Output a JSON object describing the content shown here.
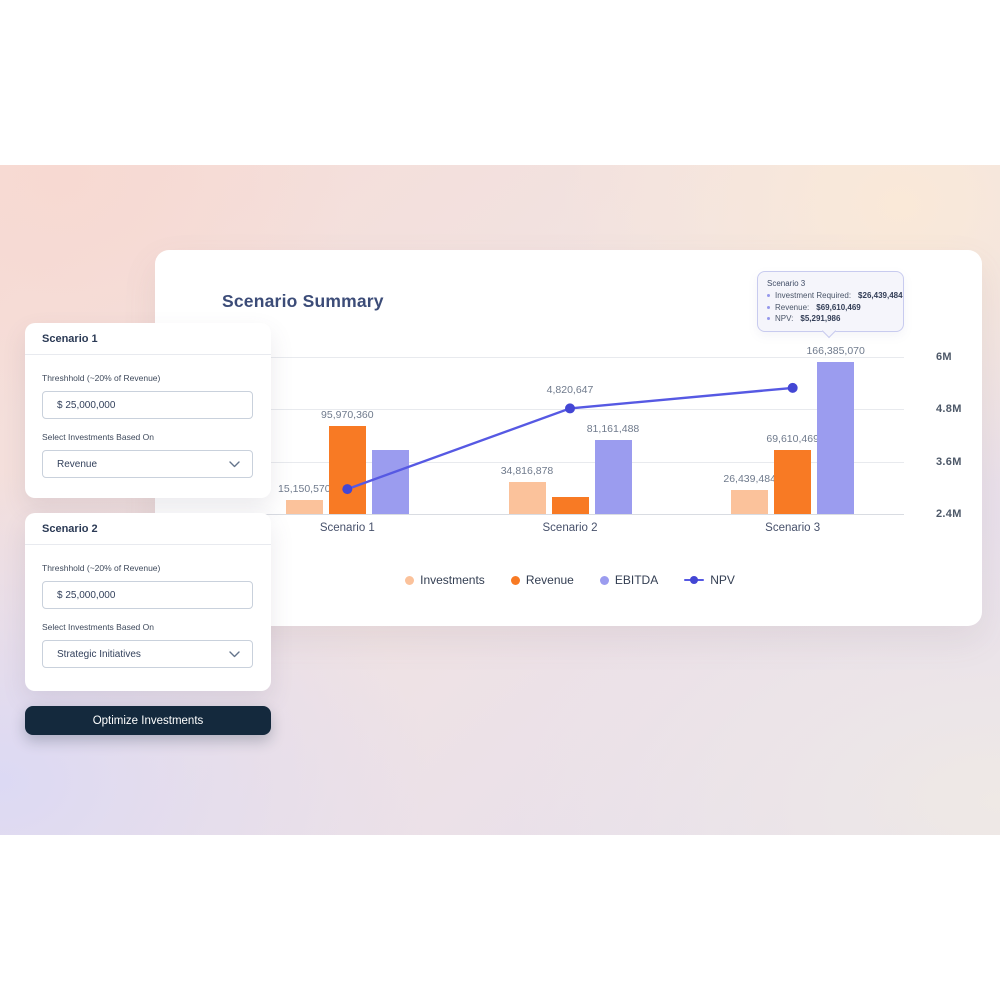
{
  "background": {
    "band_colors": {
      "pink": "#f7d9d2",
      "peach": "#fae9d8",
      "lavender": "#dcd9f4"
    }
  },
  "panel": {
    "scenario_forms": [
      {
        "title": "Scenario 1",
        "threshold_label": "Threshhold (~20% of Revenue)",
        "threshold_value": "$ 25,000,000",
        "select_label": "Select Investments Based On",
        "select_value": "Revenue"
      },
      {
        "title": "Scenario 2",
        "threshold_label": "Threshhold (~20% of Revenue)",
        "threshold_value": "$ 25,000,000",
        "select_label": "Select Investments Based On",
        "select_value": "Strategic Initiatives"
      }
    ],
    "optimize_button_label": "Optimize Investments"
  },
  "chart_card": {
    "title": "Scenario Summary",
    "tooltip": {
      "title": "Scenario 3",
      "items": [
        {
          "label": "Investment Required:",
          "value": "$26,439,484"
        },
        {
          "label": "Revenue:",
          "value": "$69,610,469"
        },
        {
          "label": "NPV:",
          "value": "$5,291,986"
        }
      ]
    }
  },
  "chart_data": {
    "type": "bar",
    "categories": [
      "Scenario 1",
      "Scenario 2",
      "Scenario 3"
    ],
    "series": [
      {
        "name": "Investments",
        "color": "#fbc29b",
        "values": [
          15150570,
          34816878,
          26439484
        ],
        "labels": [
          "15,150,570",
          "34,816,878",
          "26,439,484"
        ]
      },
      {
        "name": "Revenue",
        "color": "#f87a24",
        "values": [
          95970360,
          19000000,
          69610469
        ],
        "labels": [
          "95,970,360",
          "",
          "69,610,469"
        ]
      },
      {
        "name": "EBITDA",
        "color": "#9b9cef",
        "values": [
          70500000,
          81161488,
          166385070
        ],
        "labels": [
          "",
          "81,161,488",
          "166,385,070"
        ]
      }
    ],
    "line_series": {
      "name": "NPV",
      "color": "#5659e3",
      "dot_color": "#4346d4",
      "values": [
        2970000,
        4820647,
        5291986
      ],
      "labels": [
        "",
        "4,820,647",
        ""
      ]
    },
    "right_axis": {
      "ticks": [
        "6M",
        "4.8M",
        "3.6M",
        "2.4M"
      ],
      "min": 2400000,
      "max": 6000000
    },
    "bar_axis_max": 172000000,
    "legend": [
      "Investments",
      "Revenue",
      "EBITDA",
      "NPV"
    ],
    "grid": true,
    "legend_position": "bottom"
  }
}
